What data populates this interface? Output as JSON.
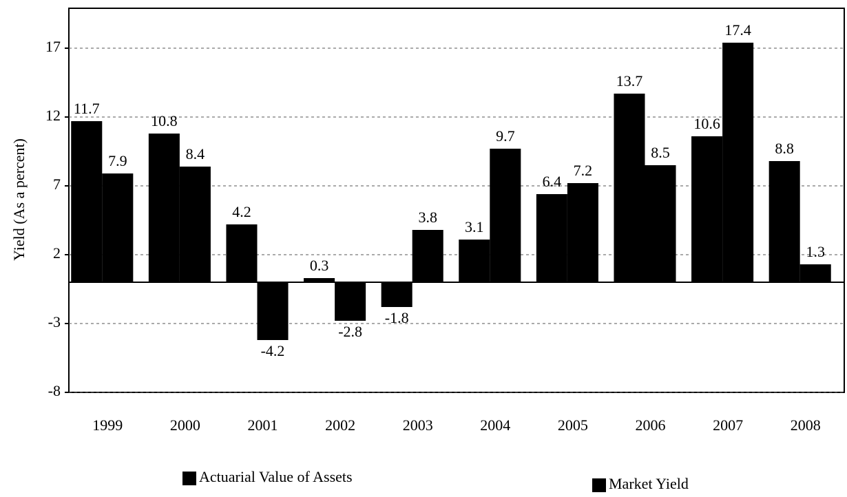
{
  "chart_data": {
    "type": "bar",
    "y_label": "Yield (As a percent)",
    "categories": [
      "1999",
      "2000",
      "2001",
      "2002",
      "2003",
      "2004",
      "2005",
      "2006",
      "2007",
      "2008"
    ],
    "series": [
      {
        "name": "Actuarial Value of Assets",
        "color": "#000000",
        "values": [
          11.7,
          10.8,
          4.2,
          0.3,
          -1.8,
          3.1,
          6.4,
          13.7,
          10.6,
          8.8
        ]
      },
      {
        "name": "Market Yield",
        "color": "#000000",
        "values": [
          7.9,
          8.4,
          -4.2,
          -2.8,
          3.8,
          9.7,
          7.2,
          8.5,
          17.4,
          1.3
        ]
      }
    ],
    "ylim": [
      -8,
      19.9
    ],
    "yticks": [
      -8,
      -3,
      2,
      7,
      12,
      17
    ],
    "grid": true,
    "legend": "bottom"
  }
}
